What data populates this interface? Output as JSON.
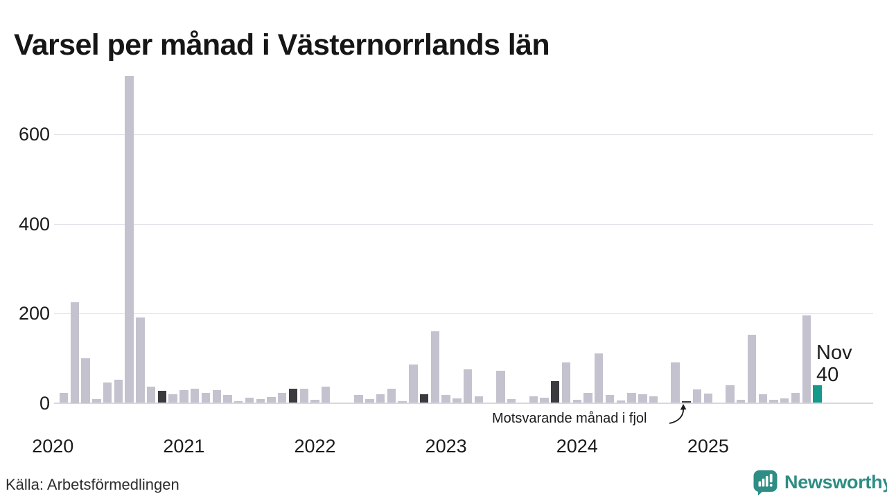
{
  "title": "Varsel per månad i Västernorrlands län",
  "source": "Källa: Arbetsförmedlingen",
  "brand": {
    "name": "Newsworthy",
    "color": "#2e8d84"
  },
  "annotation": {
    "text": "Motsvarande månad i fjol",
    "target_month": "2024-11"
  },
  "last_label": {
    "month": "Nov",
    "value": "40"
  },
  "colors": {
    "bar": "#c4c2ce",
    "prev_year": "#3a3a3f",
    "latest": "#14998a",
    "gridline": "#e4e3e9",
    "axis_line": "#d8d7de",
    "text": "#1a1a1a"
  },
  "chart_data": {
    "type": "bar",
    "title": "Varsel per månad i Västernorrlands län",
    "xlabel": "",
    "ylabel": "",
    "yticks": [
      0,
      200,
      400,
      600
    ],
    "ylim": [
      0,
      745
    ],
    "grid": "horizontal",
    "legend": "none",
    "x_year_labels": [
      "2020",
      "2021",
      "2022",
      "2023",
      "2024",
      "2025"
    ],
    "series": [
      {
        "month": "2020-01",
        "value": 0
      },
      {
        "month": "2020-02",
        "value": 23
      },
      {
        "month": "2020-03",
        "value": 225
      },
      {
        "month": "2020-04",
        "value": 100
      },
      {
        "month": "2020-05",
        "value": 8
      },
      {
        "month": "2020-06",
        "value": 46
      },
      {
        "month": "2020-07",
        "value": 52
      },
      {
        "month": "2020-08",
        "value": 730
      },
      {
        "month": "2020-09",
        "value": 190
      },
      {
        "month": "2020-10",
        "value": 36
      },
      {
        "month": "2020-11",
        "value": 27,
        "type": "prev-year"
      },
      {
        "month": "2020-12",
        "value": 20
      },
      {
        "month": "2021-01",
        "value": 28
      },
      {
        "month": "2021-02",
        "value": 31
      },
      {
        "month": "2021-03",
        "value": 23
      },
      {
        "month": "2021-04",
        "value": 29
      },
      {
        "month": "2021-05",
        "value": 17
      },
      {
        "month": "2021-06",
        "value": 4
      },
      {
        "month": "2021-07",
        "value": 11
      },
      {
        "month": "2021-08",
        "value": 8
      },
      {
        "month": "2021-09",
        "value": 13
      },
      {
        "month": "2021-10",
        "value": 22
      },
      {
        "month": "2021-11",
        "value": 31,
        "type": "prev-year"
      },
      {
        "month": "2021-12",
        "value": 32
      },
      {
        "month": "2022-01",
        "value": 7
      },
      {
        "month": "2022-02",
        "value": 37
      },
      {
        "month": "2022-03",
        "value": 0
      },
      {
        "month": "2022-04",
        "value": 0
      },
      {
        "month": "2022-05",
        "value": 17
      },
      {
        "month": "2022-06",
        "value": 8
      },
      {
        "month": "2022-07",
        "value": 19
      },
      {
        "month": "2022-08",
        "value": 32
      },
      {
        "month": "2022-09",
        "value": 4
      },
      {
        "month": "2022-10",
        "value": 85
      },
      {
        "month": "2022-11",
        "value": 19,
        "type": "prev-year"
      },
      {
        "month": "2022-12",
        "value": 160
      },
      {
        "month": "2023-01",
        "value": 18
      },
      {
        "month": "2023-02",
        "value": 10
      },
      {
        "month": "2023-03",
        "value": 75
      },
      {
        "month": "2023-04",
        "value": 15
      },
      {
        "month": "2023-05",
        "value": 0
      },
      {
        "month": "2023-06",
        "value": 72
      },
      {
        "month": "2023-07",
        "value": 8
      },
      {
        "month": "2023-08",
        "value": 0
      },
      {
        "month": "2023-09",
        "value": 15
      },
      {
        "month": "2023-10",
        "value": 12
      },
      {
        "month": "2023-11",
        "value": 48,
        "type": "prev-year"
      },
      {
        "month": "2023-12",
        "value": 90
      },
      {
        "month": "2024-01",
        "value": 7
      },
      {
        "month": "2024-02",
        "value": 23
      },
      {
        "month": "2024-03",
        "value": 110
      },
      {
        "month": "2024-04",
        "value": 17
      },
      {
        "month": "2024-05",
        "value": 5
      },
      {
        "month": "2024-06",
        "value": 22
      },
      {
        "month": "2024-07",
        "value": 19
      },
      {
        "month": "2024-08",
        "value": 14
      },
      {
        "month": "2024-09",
        "value": 0
      },
      {
        "month": "2024-10",
        "value": 90
      },
      {
        "month": "2024-11",
        "value": 4,
        "type": "prev-year"
      },
      {
        "month": "2024-12",
        "value": 30
      },
      {
        "month": "2025-01",
        "value": 21
      },
      {
        "month": "2025-02",
        "value": 0
      },
      {
        "month": "2025-03",
        "value": 40
      },
      {
        "month": "2025-04",
        "value": 7
      },
      {
        "month": "2025-05",
        "value": 152
      },
      {
        "month": "2025-06",
        "value": 20
      },
      {
        "month": "2025-07",
        "value": 7
      },
      {
        "month": "2025-08",
        "value": 10
      },
      {
        "month": "2025-09",
        "value": 23
      },
      {
        "month": "2025-10",
        "value": 195
      },
      {
        "month": "2025-11",
        "value": 40,
        "type": "latest"
      }
    ]
  }
}
